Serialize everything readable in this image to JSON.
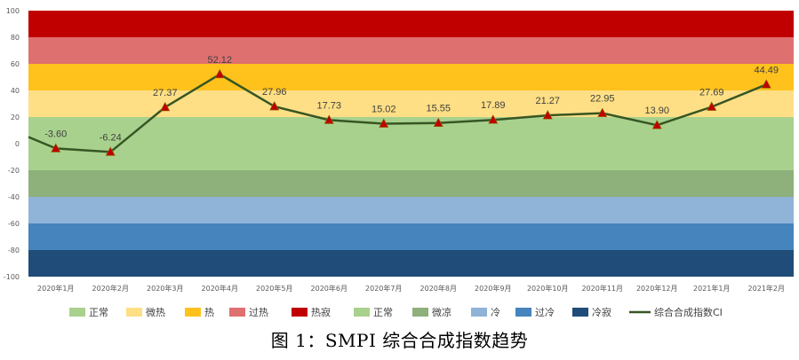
{
  "caption": "图 1：SMPI 综合合成指数趋势",
  "chart_data": {
    "type": "line",
    "title": "",
    "xlabel": "",
    "ylabel": "",
    "ylim": [
      -100,
      100
    ],
    "yticks": [
      "100",
      "80",
      "60",
      "40",
      "20",
      "0",
      "-20",
      "-40",
      "-60",
      "-80",
      "-100"
    ],
    "categories": [
      "2020年1月",
      "2020年2月",
      "2020年3月",
      "2020年4月",
      "2020年5月",
      "2020年6月",
      "2020年7月",
      "2020年8月",
      "2020年9月",
      "2020年10月",
      "2020年11月",
      "2020年12月",
      "2021年1月",
      "2021年2月"
    ],
    "series": [
      {
        "name": "综合合成指数CI",
        "color": "#375623",
        "marker_color": "#C00000",
        "values": [
          -3.6,
          -6.24,
          27.37,
          52.12,
          27.96,
          17.73,
          15.02,
          15.55,
          17.89,
          21.27,
          22.95,
          13.9,
          27.69,
          44.49
        ],
        "labels": [
          "-3.60",
          "-6.24",
          "27.37",
          "52.12",
          "27.96",
          "17.73",
          "15.02",
          "15.55",
          "17.89",
          "21.27",
          "22.95",
          "13.90",
          "27.69",
          "44.49"
        ],
        "start_value": 5
      }
    ],
    "bands": [
      {
        "name": "热寂",
        "from": 80,
        "to": 100,
        "color": "#C00000"
      },
      {
        "name": "过热",
        "from": 60,
        "to": 80,
        "color": "#DF7070"
      },
      {
        "name": "热",
        "from": 40,
        "to": 60,
        "color": "#FFC21D"
      },
      {
        "name": "微热",
        "from": 20,
        "to": 40,
        "color": "#FEDF85"
      },
      {
        "name": "正常",
        "from": -20,
        "to": 20,
        "color": "#A9D18E"
      },
      {
        "name": "微凉",
        "from": -40,
        "to": -20,
        "color": "#8EB07A"
      },
      {
        "name": "冷",
        "from": -60,
        "to": -40,
        "color": "#90B3D8"
      },
      {
        "name": "过冷",
        "from": -80,
        "to": -60,
        "color": "#4684BD"
      },
      {
        "name": "冷寂",
        "from": -100,
        "to": -80,
        "color": "#1F4C78"
      }
    ],
    "legend": {
      "position": "bottom",
      "items": [
        {
          "label": "正常",
          "color": "#A9D18E",
          "kind": "box"
        },
        {
          "label": "微热",
          "color": "#FEDF85",
          "kind": "box"
        },
        {
          "label": "热",
          "color": "#FFC21D",
          "kind": "box"
        },
        {
          "label": "过热",
          "color": "#DF7070",
          "kind": "box"
        },
        {
          "label": "热寂",
          "color": "#C00000",
          "kind": "box"
        },
        {
          "label": "正常",
          "color": "#A9D18E",
          "kind": "box"
        },
        {
          "label": "微凉",
          "color": "#8EB07A",
          "kind": "box"
        },
        {
          "label": "冷",
          "color": "#90B3D8",
          "kind": "box"
        },
        {
          "label": "过冷",
          "color": "#4684BD",
          "kind": "box"
        },
        {
          "label": "冷寂",
          "color": "#1F4C78",
          "kind": "box"
        },
        {
          "label": "综合合成指数CI",
          "color": "#375623",
          "kind": "line"
        }
      ]
    },
    "grid": false
  }
}
